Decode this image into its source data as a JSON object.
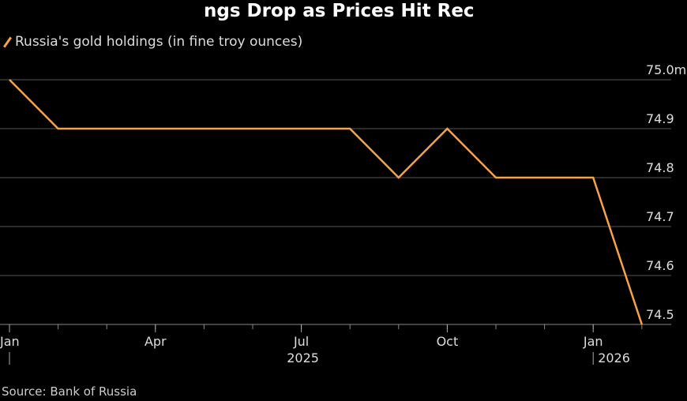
{
  "chart_data": {
    "type": "line",
    "title": "ngs Drop as Prices Hit Rec",
    "legend": [
      {
        "name": "Russia's gold holdings (in fine troy ounces)",
        "color": "#f4a348"
      }
    ],
    "x": [
      "2025-01",
      "2025-02",
      "2025-03",
      "2025-04",
      "2025-05",
      "2025-06",
      "2025-07",
      "2025-08",
      "2025-09",
      "2025-10",
      "2025-11",
      "2025-12",
      "2026-01",
      "2026-02"
    ],
    "series": [
      {
        "name": "Russia's gold holdings (in fine troy ounces)",
        "values": [
          75.0,
          74.9,
          74.9,
          74.9,
          74.9,
          74.9,
          74.9,
          74.9,
          74.8,
          74.9,
          74.8,
          74.8,
          74.8,
          74.5
        ]
      }
    ],
    "ylim": [
      74.5,
      75.0
    ],
    "y_ticks": [
      "74.5",
      "74.6",
      "74.7",
      "74.8",
      "74.9",
      "75.0m"
    ],
    "x_ticks": [
      {
        "label": "Jan",
        "index": 0
      },
      {
        "label": "Apr",
        "index": 3
      },
      {
        "label": "Jul",
        "index": 6
      },
      {
        "label": "Oct",
        "index": 9
      },
      {
        "label": "Jan",
        "index": 12
      }
    ],
    "year_labels": [
      {
        "label": "2025",
        "index": 6
      },
      {
        "label": "2026",
        "index": 12
      }
    ],
    "ylabel": "",
    "xlabel": "",
    "grid": true,
    "legend_position": "top-left"
  },
  "source": "Source: Bank of Russia"
}
